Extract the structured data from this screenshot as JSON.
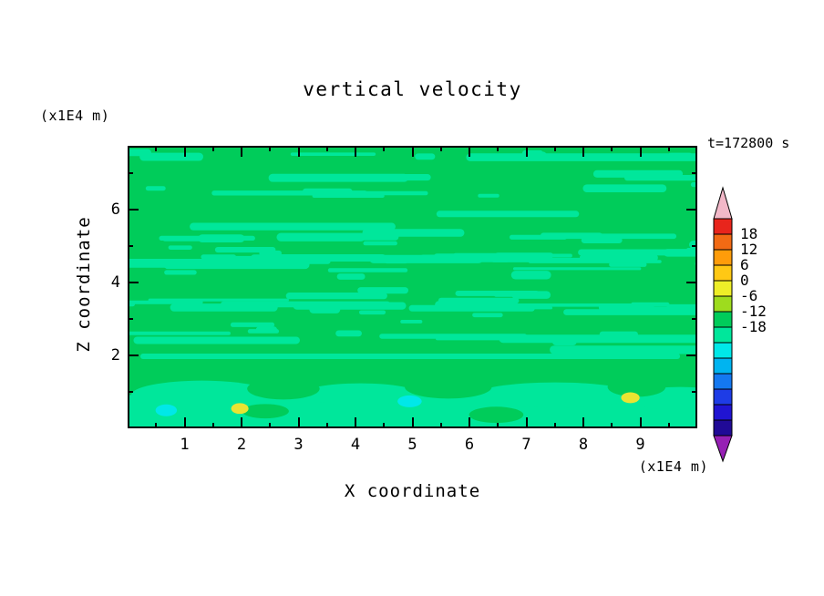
{
  "title": "vertical velocity",
  "time_label": "t=172800 s",
  "axes": {
    "x": {
      "label": "X coordinate",
      "unit": "(x1E4 m)"
    },
    "z": {
      "label": "Z coordinate",
      "unit": "(x1E4 m)"
    }
  },
  "chart_data": {
    "type": "heatmap",
    "subtype": "filled-contour",
    "title": "vertical velocity",
    "xlabel": "X coordinate",
    "ylabel": "Z coordinate",
    "x_unit": "(x1E4 m)",
    "y_unit": "(x1E4 m)",
    "time_label": "t=172800 s",
    "xlim": [
      0,
      10
    ],
    "ylim": [
      0,
      7.75
    ],
    "xticks": [
      1,
      2,
      3,
      4,
      5,
      6,
      7,
      8,
      9
    ],
    "x_minor_step": 0.5,
    "yticks": [
      2,
      4,
      6
    ],
    "y_minor_ticks": [
      1,
      3,
      5,
      7
    ],
    "contour_interval": 3,
    "colorbar": {
      "labels": [
        "18",
        "12",
        "6",
        "0",
        "-6",
        "-12",
        "-18"
      ],
      "levels": [
        21,
        18,
        15,
        12,
        9,
        6,
        3,
        0,
        -3,
        -6,
        -9,
        -12,
        -15,
        -18,
        -21
      ],
      "tip_top_color": "#F2B8C8",
      "tip_bottom_color": "#9620B4",
      "segment_colors_top_to_bottom": [
        "#E8251C",
        "#F26A14",
        "#FF9C0A",
        "#FFC814",
        "#EEEE28",
        "#9EDC1E",
        "#00CC5A",
        "#00E79B",
        "#00E8E8",
        "#00B4F0",
        "#1478F0",
        "#1E3CE6",
        "#2014D2",
        "#200A96"
      ]
    },
    "field": {
      "background_color": "#00CC5A",
      "streak_color": "#00E79B",
      "seed": 1234567,
      "layer_count": 16,
      "extra_streaks": 34,
      "streak_region_z": [
        2.05,
        7.7
      ],
      "bottom_band_z": [
        0,
        1.75
      ]
    },
    "features": [
      {
        "x": 0.65,
        "z": 0.45,
        "w": 0.25,
        "h": 0.18,
        "color": "#00E8E8",
        "level": "-6 to -3"
      },
      {
        "x": 1.95,
        "z": 0.5,
        "w": 0.18,
        "h": 0.15,
        "color": "#E9E432",
        "level": "6 to 9"
      },
      {
        "x": 4.95,
        "z": 0.7,
        "w": 0.3,
        "h": 0.18,
        "color": "#00E8E8",
        "level": "-6 to -3"
      },
      {
        "x": 8.85,
        "z": 0.8,
        "w": 0.2,
        "h": 0.15,
        "color": "#E9E432",
        "level": "6 to 9"
      }
    ],
    "field_summary": "Vertical velocity cross-section dominated by values in the -3..3 band: green (0..3) background with spring-green (-3..0) thin horizontal wave streaks above z=2, smoother broad spring-green cells below z=2, and isolated small cyan (-6..-3) and yellow (6..9) extrema near the bottom."
  }
}
